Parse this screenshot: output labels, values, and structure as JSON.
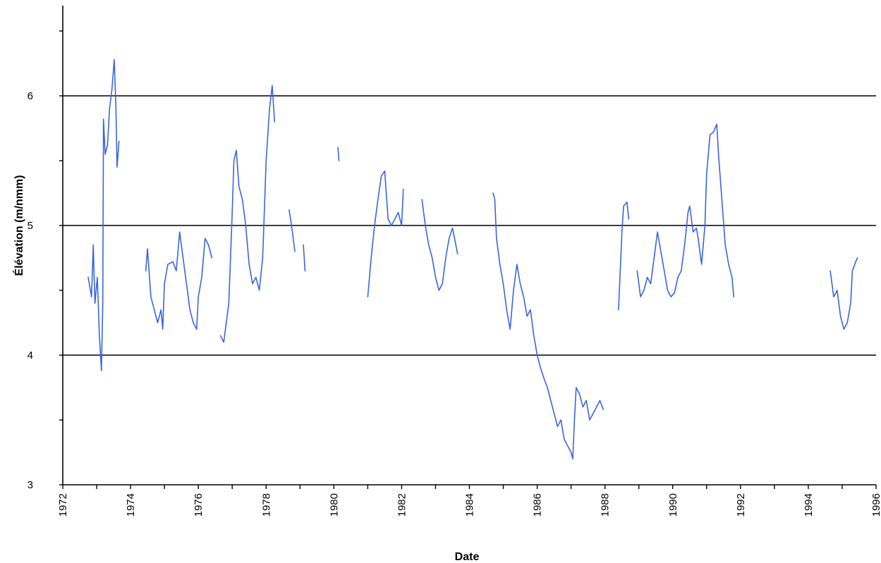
{
  "chart_data": {
    "type": "line",
    "xlabel": "Date",
    "ylabel": "Élévation (m/nmm)",
    "xlim": [
      1972,
      1996
    ],
    "ylim": [
      3,
      6.5
    ],
    "x_ticks": [
      1972,
      1974,
      1976,
      1978,
      1980,
      1982,
      1984,
      1986,
      1988,
      1990,
      1992,
      1994,
      1996
    ],
    "y_ticks": [
      3,
      4,
      5,
      6
    ],
    "grid": "horizontal lines at 4, 5 and 6",
    "legend": "none",
    "color": "#3a66dc",
    "series": [
      {
        "segments": [
          [
            [
              1972.75,
              4.6
            ],
            [
              1972.85,
              4.45
            ],
            [
              1972.9,
              4.85
            ],
            [
              1972.95,
              4.4
            ],
            [
              1973.02,
              4.6
            ],
            [
              1973.08,
              4.15
            ],
            [
              1973.14,
              3.88
            ],
            [
              1973.18,
              4.4
            ],
            [
              1973.2,
              5.82
            ],
            [
              1973.25,
              5.55
            ],
            [
              1973.32,
              5.62
            ],
            [
              1973.38,
              5.9
            ],
            [
              1973.45,
              6.05
            ],
            [
              1973.52,
              6.28
            ],
            [
              1973.57,
              5.9
            ],
            [
              1973.6,
              5.45
            ],
            [
              1973.66,
              5.65
            ]
          ],
          [
            [
              1974.45,
              4.65
            ],
            [
              1974.5,
              4.82
            ],
            [
              1974.6,
              4.45
            ],
            [
              1974.7,
              4.35
            ],
            [
              1974.8,
              4.25
            ],
            [
              1974.9,
              4.35
            ],
            [
              1974.95,
              4.2
            ],
            [
              1975.0,
              4.55
            ],
            [
              1975.1,
              4.7
            ],
            [
              1975.25,
              4.72
            ],
            [
              1975.35,
              4.65
            ],
            [
              1975.45,
              4.95
            ],
            [
              1975.55,
              4.75
            ],
            [
              1975.65,
              4.55
            ],
            [
              1975.75,
              4.35
            ],
            [
              1975.85,
              4.25
            ],
            [
              1975.95,
              4.2
            ],
            [
              1976.0,
              4.45
            ],
            [
              1976.1,
              4.6
            ],
            [
              1976.2,
              4.9
            ],
            [
              1976.3,
              4.85
            ],
            [
              1976.4,
              4.75
            ]
          ],
          [
            [
              1976.65,
              4.15
            ],
            [
              1976.75,
              4.1
            ],
            [
              1976.85,
              4.3
            ],
            [
              1976.9,
              4.4
            ],
            [
              1977.0,
              5.1
            ],
            [
              1977.05,
              5.5
            ],
            [
              1977.12,
              5.58
            ],
            [
              1977.2,
              5.3
            ],
            [
              1977.3,
              5.2
            ],
            [
              1977.4,
              5.0
            ],
            [
              1977.5,
              4.7
            ],
            [
              1977.6,
              4.55
            ],
            [
              1977.7,
              4.6
            ],
            [
              1977.8,
              4.5
            ],
            [
              1977.9,
              4.75
            ],
            [
              1978.0,
              5.5
            ],
            [
              1978.1,
              5.9
            ],
            [
              1978.18,
              6.08
            ],
            [
              1978.25,
              5.8
            ]
          ],
          [
            [
              1978.68,
              5.12
            ],
            [
              1978.75,
              5.0
            ],
            [
              1978.85,
              4.8
            ]
          ],
          [
            [
              1979.1,
              4.85
            ],
            [
              1979.15,
              4.65
            ]
          ],
          [
            [
              1980.12,
              5.6
            ],
            [
              1980.15,
              5.5
            ]
          ],
          [
            [
              1981.0,
              4.45
            ],
            [
              1981.1,
              4.75
            ],
            [
              1981.2,
              5.0
            ],
            [
              1981.3,
              5.2
            ],
            [
              1981.4,
              5.38
            ],
            [
              1981.5,
              5.42
            ],
            [
              1981.6,
              5.05
            ],
            [
              1981.7,
              5.0
            ],
            [
              1981.8,
              5.05
            ],
            [
              1981.9,
              5.1
            ],
            [
              1982.0,
              5.0
            ],
            [
              1982.05,
              5.28
            ]
          ],
          [
            [
              1982.6,
              5.2
            ],
            [
              1982.7,
              5.0
            ],
            [
              1982.8,
              4.85
            ],
            [
              1982.9,
              4.75
            ],
            [
              1983.0,
              4.6
            ],
            [
              1983.1,
              4.5
            ],
            [
              1983.2,
              4.55
            ],
            [
              1983.3,
              4.75
            ],
            [
              1983.4,
              4.9
            ],
            [
              1983.5,
              4.98
            ],
            [
              1983.6,
              4.85
            ],
            [
              1983.65,
              4.78
            ]
          ],
          [
            [
              1984.7,
              5.25
            ],
            [
              1984.75,
              5.2
            ],
            [
              1984.8,
              4.9
            ],
            [
              1984.9,
              4.7
            ],
            [
              1985.0,
              4.55
            ],
            [
              1985.1,
              4.35
            ],
            [
              1985.2,
              4.2
            ],
            [
              1985.3,
              4.5
            ],
            [
              1985.4,
              4.7
            ],
            [
              1985.5,
              4.55
            ],
            [
              1985.6,
              4.45
            ],
            [
              1985.7,
              4.3
            ],
            [
              1985.8,
              4.35
            ],
            [
              1985.9,
              4.15
            ],
            [
              1986.0,
              4.0
            ],
            [
              1986.1,
              3.9
            ],
            [
              1986.2,
              3.82
            ],
            [
              1986.3,
              3.75
            ],
            [
              1986.4,
              3.65
            ],
            [
              1986.5,
              3.55
            ],
            [
              1986.6,
              3.45
            ],
            [
              1986.7,
              3.5
            ],
            [
              1986.8,
              3.35
            ],
            [
              1986.9,
              3.3
            ],
            [
              1987.0,
              3.25
            ],
            [
              1987.05,
              3.2
            ],
            [
              1987.1,
              3.5
            ],
            [
              1987.15,
              3.75
            ],
            [
              1987.25,
              3.7
            ],
            [
              1987.35,
              3.6
            ],
            [
              1987.45,
              3.65
            ],
            [
              1987.55,
              3.5
            ],
            [
              1987.65,
              3.55
            ],
            [
              1987.75,
              3.6
            ],
            [
              1987.85,
              3.65
            ],
            [
              1987.95,
              3.58
            ]
          ],
          [
            [
              1988.4,
              4.35
            ],
            [
              1988.5,
              4.95
            ],
            [
              1988.55,
              5.15
            ],
            [
              1988.65,
              5.18
            ],
            [
              1988.7,
              5.05
            ]
          ],
          [
            [
              1988.95,
              4.65
            ],
            [
              1989.05,
              4.45
            ],
            [
              1989.15,
              4.5
            ],
            [
              1989.25,
              4.6
            ],
            [
              1989.35,
              4.55
            ],
            [
              1989.45,
              4.75
            ],
            [
              1989.55,
              4.95
            ],
            [
              1989.65,
              4.8
            ],
            [
              1989.75,
              4.65
            ],
            [
              1989.85,
              4.5
            ],
            [
              1989.95,
              4.45
            ],
            [
              1990.05,
              4.48
            ],
            [
              1990.15,
              4.6
            ],
            [
              1990.25,
              4.65
            ],
            [
              1990.35,
              4.85
            ],
            [
              1990.45,
              5.1
            ],
            [
              1990.5,
              5.15
            ],
            [
              1990.6,
              4.95
            ],
            [
              1990.7,
              4.98
            ],
            [
              1990.75,
              4.9
            ],
            [
              1990.85,
              4.7
            ],
            [
              1990.95,
              5.0
            ],
            [
              1991.0,
              5.4
            ],
            [
              1991.1,
              5.7
            ],
            [
              1991.2,
              5.72
            ],
            [
              1991.3,
              5.78
            ],
            [
              1991.35,
              5.55
            ],
            [
              1991.45,
              5.2
            ],
            [
              1991.55,
              4.85
            ],
            [
              1991.65,
              4.7
            ],
            [
              1991.75,
              4.6
            ],
            [
              1991.8,
              4.45
            ]
          ],
          [
            [
              1994.65,
              4.65
            ],
            [
              1994.75,
              4.45
            ],
            [
              1994.85,
              4.5
            ],
            [
              1994.95,
              4.3
            ],
            [
              1995.05,
              4.2
            ],
            [
              1995.15,
              4.25
            ],
            [
              1995.25,
              4.4
            ],
            [
              1995.3,
              4.65
            ],
            [
              1995.4,
              4.72
            ],
            [
              1995.45,
              4.75
            ]
          ]
        ]
      }
    ]
  }
}
